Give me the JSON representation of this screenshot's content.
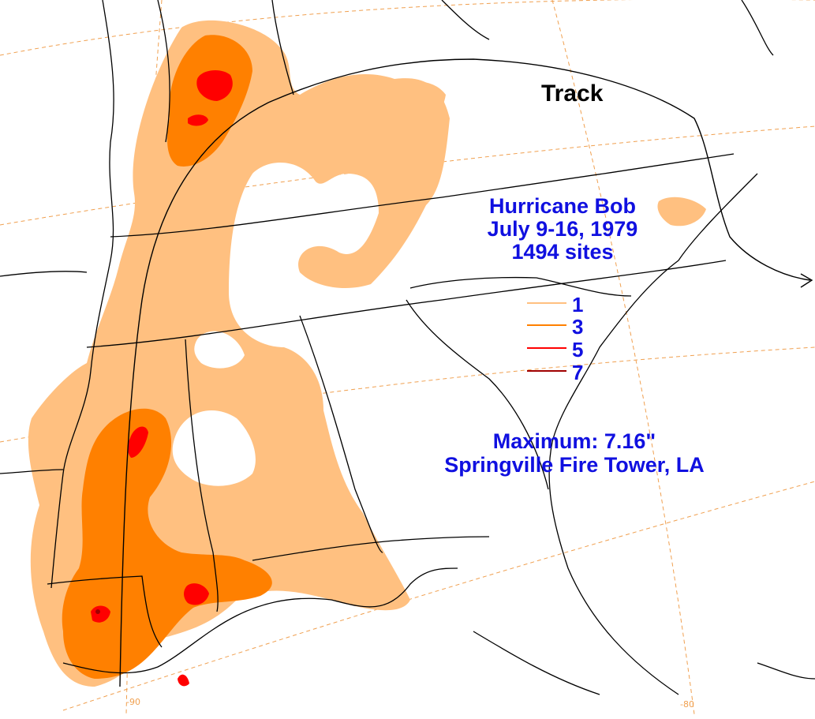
{
  "track_label": "Track",
  "title": {
    "line1": "Hurricane Bob",
    "line2": "July 9-16, 1979",
    "line3": "1494 sites"
  },
  "legend": [
    {
      "value": "1",
      "color": "#ffc080"
    },
    {
      "value": "3",
      "color": "#ff8000"
    },
    {
      "value": "5",
      "color": "#ff0000"
    },
    {
      "value": "7",
      "color": "#a00000"
    }
  ],
  "maximum": {
    "line1": "Maximum:  7.16\"",
    "line2": "Springville Fire Tower, LA"
  },
  "graticule_labels": [
    "-90",
    "-80"
  ],
  "colors": {
    "label_blue": "#1010e0",
    "graticule": "#f0a050",
    "border": "#000000"
  }
}
